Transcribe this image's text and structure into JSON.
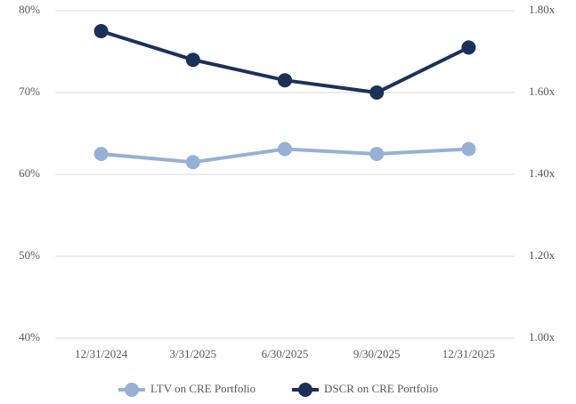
{
  "chart_data": {
    "type": "line",
    "categories": [
      "12/31/2024",
      "3/31/2025",
      "6/30/2025",
      "9/30/2025",
      "12/31/2025"
    ],
    "series": [
      {
        "name": "LTV on CRE Portfolio",
        "color": "#97b1d6",
        "values": [
          62.5,
          61.5,
          63.1,
          62.5,
          63.1
        ]
      },
      {
        "name": "DSCR on CRE Portfolio",
        "color": "#1b3158",
        "axis": "y2",
        "values": [
          1.75,
          1.68,
          1.63,
          1.6,
          1.71
        ]
      }
    ],
    "ylim": [
      40,
      80
    ],
    "yticks": [
      {
        "value": 40,
        "label": "40%"
      },
      {
        "value": 50,
        "label": "50%"
      },
      {
        "value": 60,
        "label": "60%"
      },
      {
        "value": 70,
        "label": "70%"
      },
      {
        "value": 80,
        "label": "80%"
      }
    ],
    "y2lim": [
      1.0,
      1.8
    ],
    "y2ticks": [
      {
        "value": 1.0,
        "label": "1.00x"
      },
      {
        "value": 1.2,
        "label": "1.20x"
      },
      {
        "value": 1.4,
        "label": "1.40x"
      },
      {
        "value": 1.6,
        "label": "1.60x"
      },
      {
        "value": 1.8,
        "label": "1.80x"
      }
    ],
    "grid": true,
    "legend": "bottom"
  }
}
